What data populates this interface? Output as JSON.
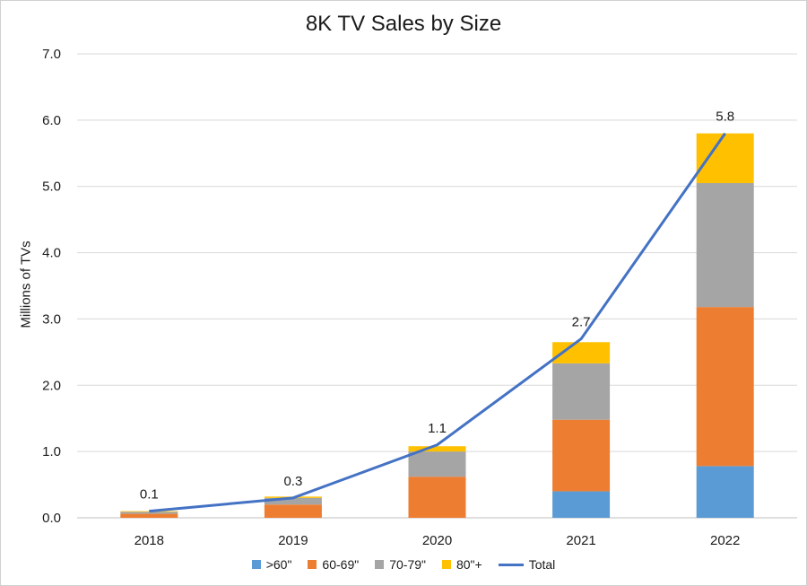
{
  "chart_data": {
    "type": "bar",
    "stacked": true,
    "title": "8K TV Sales by Size",
    "xlabel": "",
    "ylabel": "Millions of TVs",
    "ylim": [
      0,
      7.0
    ],
    "yticks": [
      "0.0",
      "1.0",
      "2.0",
      "3.0",
      "4.0",
      "5.0",
      "6.0",
      "7.0"
    ],
    "grid": true,
    "legend_position": "bottom",
    "categories": [
      "2018",
      "2019",
      "2020",
      "2021",
      "2022"
    ],
    "series": [
      {
        "name": ">60\"",
        "type": "bar",
        "color": "#5b9bd5",
        "values": [
          0.0,
          0.0,
          0.0,
          0.4,
          0.78
        ]
      },
      {
        "name": "60-69\"",
        "type": "bar",
        "color": "#ed7d31",
        "values": [
          0.06,
          0.2,
          0.62,
          1.08,
          2.4
        ]
      },
      {
        "name": "70-79\"",
        "type": "bar",
        "color": "#a5a5a5",
        "values": [
          0.03,
          0.1,
          0.38,
          0.85,
          1.87
        ]
      },
      {
        "name": "80\"+",
        "type": "bar",
        "color": "#ffc000",
        "values": [
          0.01,
          0.02,
          0.08,
          0.32,
          0.75
        ]
      },
      {
        "name": "Total",
        "type": "line",
        "color": "#4472c4",
        "values": [
          0.1,
          0.3,
          1.1,
          2.7,
          5.8
        ]
      }
    ],
    "data_labels": [
      "0.1",
      "0.3",
      "1.1",
      "2.7",
      "5.8"
    ]
  }
}
